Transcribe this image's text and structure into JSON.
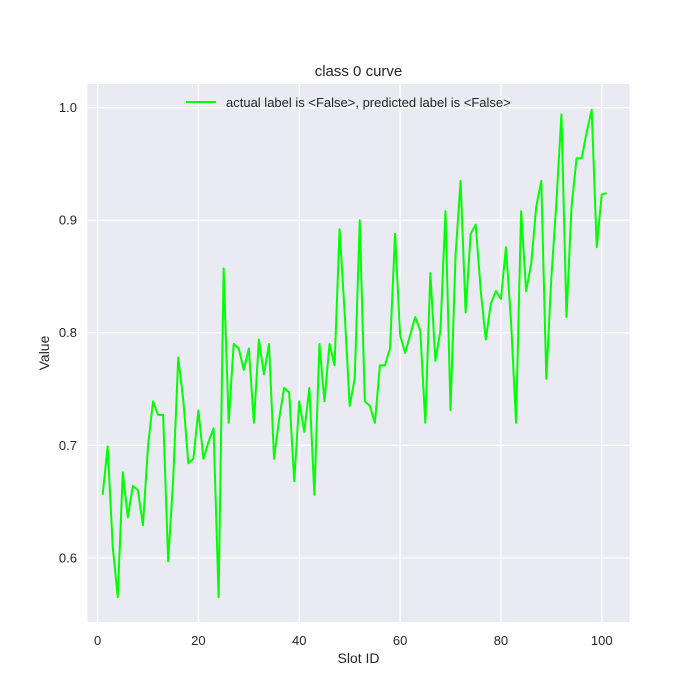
{
  "chart_data": {
    "type": "line",
    "title": "class 0 curve",
    "xlabel": "Slot ID",
    "ylabel": "Value",
    "xlim": [
      -2,
      105.5
    ],
    "ylim": [
      0.543,
      1.021
    ],
    "xticks": [
      0,
      20,
      40,
      60,
      80,
      100
    ],
    "yticks": [
      0.6,
      0.7,
      0.8,
      0.9,
      1.0
    ],
    "xtick_labels": [
      "0",
      "20",
      "40",
      "60",
      "80",
      "100"
    ],
    "ytick_labels": [
      "0.6",
      "0.7",
      "0.8",
      "0.9",
      "1.0"
    ],
    "grid": true,
    "background": "#eaeaf2",
    "legend_position": "top-center",
    "series": [
      {
        "name": "actual label is <False>, predicted label is <False>",
        "color": "#00ff00",
        "x": [
          1,
          2,
          3,
          4,
          5,
          6,
          7,
          8,
          9,
          10,
          11,
          12,
          13,
          14,
          15,
          16,
          17,
          18,
          19,
          20,
          21,
          22,
          23,
          24,
          25,
          26,
          27,
          28,
          29,
          30,
          31,
          32,
          33,
          34,
          35,
          36,
          37,
          38,
          39,
          40,
          41,
          42,
          43,
          44,
          45,
          46,
          47,
          48,
          49,
          50,
          51,
          52,
          53,
          54,
          55,
          56,
          57,
          58,
          59,
          60,
          61,
          62,
          63,
          64,
          65,
          66,
          67,
          68,
          69,
          70,
          71,
          72,
          73,
          74,
          75,
          76,
          77,
          78,
          79,
          80,
          81,
          82,
          83,
          84,
          85,
          86,
          87,
          88,
          89,
          90,
          91,
          92,
          93,
          94,
          95,
          96,
          97,
          98,
          99,
          100,
          101
        ],
        "values": [
          0.656,
          0.699,
          0.61,
          0.565,
          0.676,
          0.636,
          0.664,
          0.66,
          0.629,
          0.699,
          0.739,
          0.727,
          0.727,
          0.597,
          0.67,
          0.778,
          0.74,
          0.684,
          0.688,
          0.731,
          0.688,
          0.703,
          0.715,
          0.565,
          0.857,
          0.72,
          0.79,
          0.786,
          0.767,
          0.786,
          0.72,
          0.794,
          0.763,
          0.79,
          0.688,
          0.723,
          0.751,
          0.747,
          0.668,
          0.739,
          0.712,
          0.751,
          0.656,
          0.79,
          0.739,
          0.79,
          0.771,
          0.892,
          0.818,
          0.735,
          0.759,
          0.9,
          0.739,
          0.735,
          0.72,
          0.771,
          0.771,
          0.786,
          0.888,
          0.798,
          0.782,
          0.798,
          0.814,
          0.802,
          0.72,
          0.853,
          0.775,
          0.802,
          0.908,
          0.731,
          0.869,
          0.935,
          0.818,
          0.888,
          0.896,
          0.837,
          0.794,
          0.826,
          0.837,
          0.83,
          0.876,
          0.81,
          0.72,
          0.908,
          0.837,
          0.861,
          0.912,
          0.935,
          0.759,
          0.849,
          0.916,
          0.994,
          0.814,
          0.912,
          0.955,
          0.955,
          0.978,
          0.998,
          0.876,
          0.923,
          0.924
        ]
      }
    ]
  }
}
